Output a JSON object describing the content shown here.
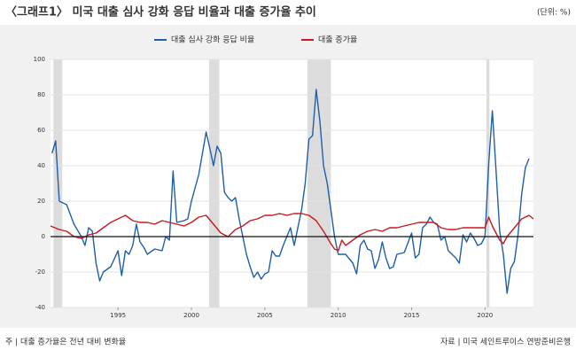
{
  "chart_data": {
    "type": "line",
    "title": "〈그래프1〉 미국 대출 심사 강화 응답 비율과 대출 증가율 추이",
    "unit": "(단위: %)",
    "note": "주 | 대출 증가율은 전년 대비 변화율",
    "source": "자료 | 미국 세인트루이스 연방준비은행",
    "xlim": [
      1990.4,
      2023.3
    ],
    "xticks": [
      1995,
      2000,
      2005,
      2010,
      2015,
      2020
    ],
    "ylim": [
      -40,
      100
    ],
    "yticks": [
      -40,
      -20,
      0,
      20,
      40,
      60,
      80,
      100
    ],
    "grid": true,
    "recessions": [
      [
        1990.6,
        1991.2
      ],
      [
        2001.2,
        2001.9
      ],
      [
        2007.9,
        2009.5
      ],
      [
        2020.1,
        2020.3
      ]
    ],
    "series": [
      {
        "name": "대출 심사 강화 응답 비율",
        "color": "#1f5fa8",
        "x": [
          1990.5,
          1990.75,
          1991.0,
          1991.5,
          1992.0,
          1992.5,
          1992.75,
          1993.0,
          1993.25,
          1993.5,
          1993.75,
          1994.0,
          1994.5,
          1995.0,
          1995.25,
          1995.5,
          1995.75,
          1996.0,
          1996.25,
          1996.5,
          1996.75,
          1997.0,
          1997.5,
          1998.0,
          1998.25,
          1998.5,
          1998.75,
          1999.0,
          1999.5,
          1999.75,
          2000.0,
          2000.5,
          2001.0,
          2001.25,
          2001.5,
          2001.75,
          2002.0,
          2002.25,
          2002.5,
          2002.75,
          2003.0,
          2003.25,
          2003.5,
          2003.75,
          2004.0,
          2004.25,
          2004.5,
          2004.75,
          2005.0,
          2005.25,
          2005.5,
          2005.75,
          2006.0,
          2006.25,
          2006.5,
          2006.75,
          2007.0,
          2007.25,
          2007.5,
          2007.75,
          2008.0,
          2008.25,
          2008.5,
          2008.75,
          2009.0,
          2009.25,
          2009.5,
          2009.75,
          2010.0,
          2010.5,
          2011.0,
          2011.25,
          2011.5,
          2011.75,
          2012.0,
          2012.25,
          2012.5,
          2012.75,
          2013.0,
          2013.25,
          2013.5,
          2013.75,
          2014.0,
          2014.5,
          2015.0,
          2015.25,
          2015.5,
          2015.75,
          2016.0,
          2016.25,
          2016.5,
          2016.75,
          2017.0,
          2017.25,
          2017.5,
          2017.75,
          2018.0,
          2018.25,
          2018.5,
          2018.75,
          2019.0,
          2019.25,
          2019.5,
          2019.75,
          2020.0,
          2020.25,
          2020.5,
          2020.75,
          2021.0,
          2021.25,
          2021.5,
          2021.75,
          2022.0,
          2022.25,
          2022.5,
          2022.75,
          2023.0
        ],
        "values": [
          47,
          54,
          20,
          18,
          7,
          0,
          -5,
          5,
          3,
          -15,
          -25,
          -20,
          -17,
          -8,
          -22,
          -8,
          -10,
          -5,
          7,
          -3,
          -6,
          -10,
          -7,
          -8,
          0,
          -2,
          37,
          8,
          9,
          10,
          20,
          35,
          59,
          50,
          40,
          51,
          47,
          25,
          22,
          20,
          22,
          10,
          0,
          -10,
          -17,
          -23,
          -20,
          -24,
          -21,
          -20,
          -8,
          -11,
          -11,
          -5,
          0,
          5,
          -5,
          5,
          15,
          30,
          55,
          57,
          83,
          65,
          40,
          30,
          15,
          0,
          -10,
          -10,
          -15,
          -21,
          -5,
          -2,
          -7,
          -8,
          -18,
          -13,
          -3,
          -12,
          -18,
          -17,
          -10,
          -9,
          2,
          -12,
          -10,
          5,
          7,
          11,
          8,
          7,
          -2,
          0,
          -8,
          -10,
          -12,
          -15,
          1,
          -3,
          2,
          -1,
          -5,
          -4,
          0,
          41,
          71,
          37,
          3,
          -10,
          -32,
          -18,
          -14,
          1,
          24,
          39,
          44
        ]
      },
      {
        "name": "대출 증가율",
        "color": "#c8191e",
        "x": [
          1990.4,
          1991.0,
          1991.5,
          1992.0,
          1992.5,
          1993.0,
          1993.5,
          1994.0,
          1994.5,
          1995.0,
          1995.5,
          1996.0,
          1996.5,
          1997.0,
          1997.5,
          1998.0,
          1998.5,
          1999.0,
          1999.5,
          2000.0,
          2000.5,
          2001.0,
          2001.5,
          2002.0,
          2002.5,
          2003.0,
          2003.5,
          2004.0,
          2004.5,
          2005.0,
          2005.5,
          2006.0,
          2006.5,
          2007.0,
          2007.5,
          2008.0,
          2008.5,
          2009.0,
          2009.5,
          2009.75,
          2010.0,
          2010.25,
          2010.5,
          2011.0,
          2011.5,
          2012.0,
          2012.5,
          2013.0,
          2013.5,
          2014.0,
          2014.5,
          2015.0,
          2015.5,
          2016.0,
          2016.5,
          2017.0,
          2017.5,
          2018.0,
          2018.5,
          2019.0,
          2019.5,
          2020.0,
          2020.25,
          2020.5,
          2021.0,
          2021.25,
          2021.5,
          2022.0,
          2022.5,
          2023.0,
          2023.3
        ],
        "values": [
          6,
          4,
          3,
          0,
          -1,
          1,
          2,
          5,
          8,
          10,
          12,
          9,
          8,
          8,
          7,
          9,
          8,
          7,
          6,
          8,
          11,
          12,
          7,
          2,
          0,
          4,
          6,
          9,
          10,
          12,
          12,
          13,
          12,
          13,
          13,
          12,
          9,
          3,
          -4,
          -7,
          -8,
          -2,
          -5,
          -2,
          1,
          3,
          4,
          3,
          5,
          5,
          6,
          7,
          8,
          8,
          8,
          5,
          4,
          4,
          5,
          5,
          5,
          5,
          11,
          6,
          -2,
          -4,
          0,
          5,
          10,
          12,
          10
        ]
      }
    ]
  }
}
